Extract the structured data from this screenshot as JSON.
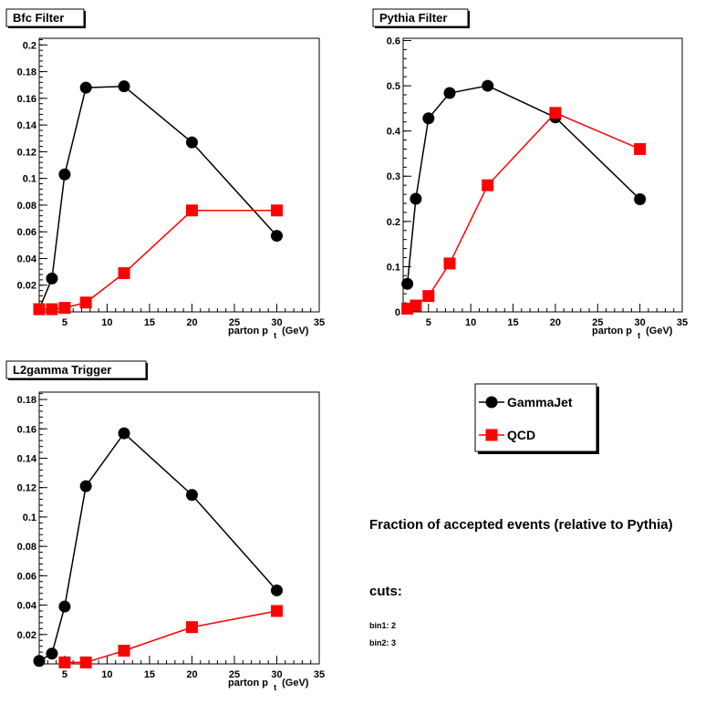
{
  "chart_data": [
    {
      "type": "line",
      "title": "Bfc Filter",
      "xlabel_main": "parton p",
      "xlabel_sub": "t",
      "xlabel_unit": "(GeV)",
      "xlim": [
        2,
        35
      ],
      "ylim": [
        0,
        0.205
      ],
      "xticks": [
        5,
        10,
        15,
        20,
        25,
        30,
        35
      ],
      "yticks": [
        0.02,
        0.04,
        0.06,
        0.08,
        0.1,
        0.12,
        0.14,
        0.16,
        0.18,
        0.2
      ],
      "ytick_labels": [
        "0.02",
        "0.04",
        "0.06",
        "0.08",
        "0.1",
        "0.12",
        "0.14",
        "0.16",
        "0.18",
        "0.2"
      ],
      "series": [
        {
          "name": "GammaJet",
          "color": "#000000",
          "marker": "circle",
          "x": [
            2,
            3.5,
            5,
            7.5,
            12,
            20,
            30
          ],
          "y": [
            0.002,
            0.025,
            0.103,
            0.168,
            0.169,
            0.127,
            0.057
          ]
        },
        {
          "name": "QCD",
          "color": "#ff0000",
          "marker": "square",
          "x": [
            2,
            3.5,
            5,
            7.5,
            12,
            20,
            30
          ],
          "y": [
            0.002,
            0.002,
            0.003,
            0.007,
            0.029,
            0.076,
            0.076
          ]
        }
      ]
    },
    {
      "type": "line",
      "title": "Pythia Filter",
      "xlabel_main": "parton p",
      "xlabel_sub": "t",
      "xlabel_unit": "(GeV)",
      "xlim": [
        2,
        35
      ],
      "ylim": [
        0,
        0.605
      ],
      "xticks": [
        5,
        10,
        15,
        20,
        25,
        30,
        35
      ],
      "yticks": [
        0,
        0.1,
        0.2,
        0.3,
        0.4,
        0.5,
        0.6
      ],
      "ytick_labels": [
        "0",
        "0.1",
        "0.2",
        "0.3",
        "0.4",
        "0.5",
        "0.6"
      ],
      "series": [
        {
          "name": "GammaJet",
          "color": "#000000",
          "marker": "circle",
          "x": [
            2.5,
            3.5,
            5,
            7.5,
            12,
            20,
            30
          ],
          "y": [
            0.062,
            0.25,
            0.428,
            0.484,
            0.5,
            0.43,
            0.249
          ]
        },
        {
          "name": "QCD",
          "color": "#ff0000",
          "marker": "square",
          "x": [
            2.5,
            3.5,
            5,
            7.5,
            12,
            20,
            30
          ],
          "y": [
            0.007,
            0.014,
            0.035,
            0.107,
            0.28,
            0.44,
            0.36
          ]
        }
      ]
    },
    {
      "type": "line",
      "title": "L2gamma Trigger",
      "xlabel_main": "parton p",
      "xlabel_sub": "t",
      "xlabel_unit": "(GeV)",
      "xlim": [
        2,
        35
      ],
      "ylim": [
        0,
        0.185
      ],
      "xticks": [
        5,
        10,
        15,
        20,
        25,
        30,
        35
      ],
      "yticks": [
        0.02,
        0.04,
        0.06,
        0.08,
        0.1,
        0.12,
        0.14,
        0.16,
        0.18
      ],
      "ytick_labels": [
        "0.02",
        "0.04",
        "0.06",
        "0.08",
        "0.1",
        "0.12",
        "0.14",
        "0.16",
        "0.18"
      ],
      "series": [
        {
          "name": "GammaJet",
          "color": "#000000",
          "marker": "circle",
          "x": [
            2,
            3.5,
            5,
            7.5,
            12,
            20,
            30
          ],
          "y": [
            0.002,
            0.007,
            0.039,
            0.121,
            0.157,
            0.115,
            0.05
          ]
        },
        {
          "name": "QCD",
          "color": "#ff0000",
          "marker": "square",
          "x": [
            5,
            7.5,
            12,
            20,
            30
          ],
          "y": [
            0.001,
            0.001,
            0.009,
            0.025,
            0.036
          ]
        }
      ]
    }
  ],
  "legend": {
    "entries": [
      {
        "label": "GammaJet",
        "color": "#000000",
        "marker": "circle"
      },
      {
        "label": "QCD",
        "color": "#ff0000",
        "marker": "square"
      }
    ]
  },
  "info": {
    "headline": "Fraction of accepted events (relative to Pythia)",
    "cuts_label": "cuts:",
    "bin1": "bin1: 2",
    "bin2": "bin2: 3"
  }
}
